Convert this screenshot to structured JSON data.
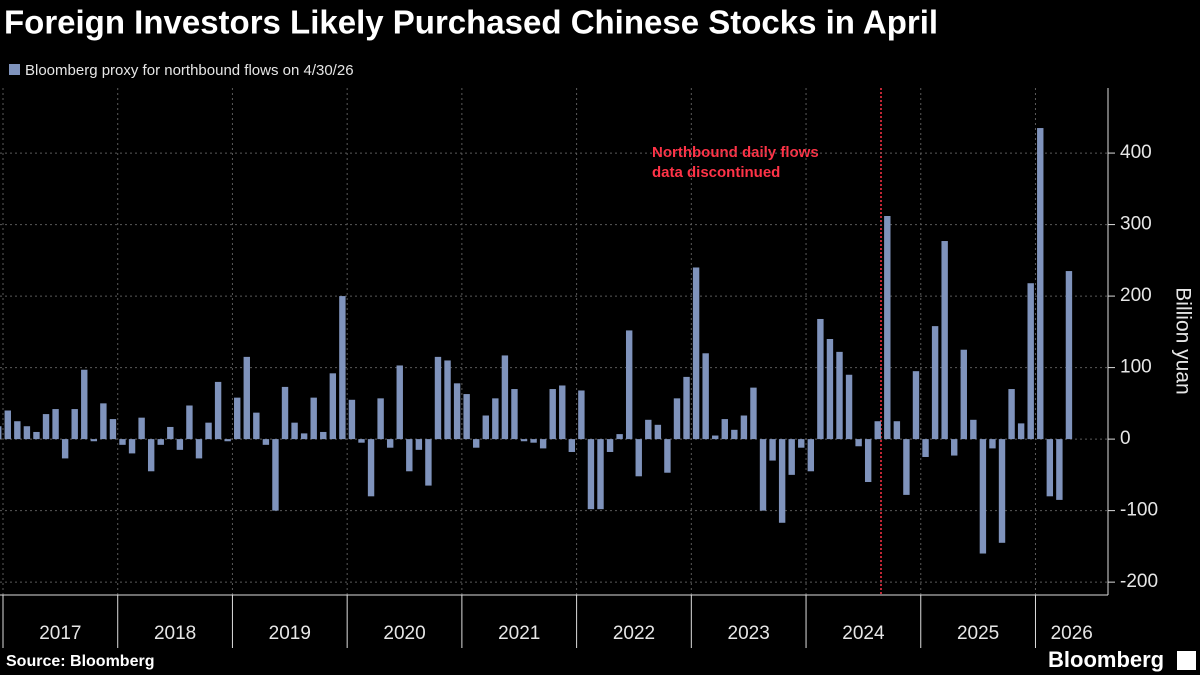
{
  "chart_data": {
    "type": "bar",
    "title": "Foreign Investors Likely Purchased Chinese Stocks in April",
    "y_axis_label": "Billion yuan",
    "annotation": [
      "Northbound daily flows",
      "data discontinued"
    ],
    "source": "Source: Bloomberg",
    "brand": "Bloomberg",
    "categories": [
      null,
      "2017",
      null,
      null,
      null,
      null,
      null,
      null,
      null,
      null,
      null,
      null,
      null,
      "2018",
      null,
      null,
      null,
      null,
      null,
      null,
      null,
      null,
      null,
      null,
      null,
      "2019",
      null,
      null,
      null,
      null,
      null,
      null,
      null,
      null,
      null,
      null,
      null,
      "2020",
      null,
      null,
      null,
      null,
      null,
      null,
      null,
      null,
      null,
      null,
      null,
      "2021",
      null,
      null,
      null,
      null,
      null,
      null,
      null,
      null,
      null,
      null,
      null,
      "2022",
      null,
      null,
      null,
      null,
      null,
      null,
      null,
      null,
      null,
      null,
      null,
      "2023",
      null,
      null,
      null,
      null,
      null,
      null,
      null,
      null,
      null,
      null,
      null,
      "2024",
      null,
      null,
      null,
      null,
      null,
      null,
      null,
      null,
      null,
      null,
      null,
      "2025",
      null,
      null,
      null,
      null,
      null,
      null,
      null,
      null,
      null,
      null,
      null,
      "2026",
      null,
      null,
      null
    ],
    "series": [
      {
        "name": "Bloomberg proxy for northbound flows on 4/30/26",
        "color": "#7f93bc",
        "values": [
          18,
          40,
          25,
          18,
          10,
          35,
          42,
          -27,
          42,
          97,
          -3,
          50,
          28,
          -8,
          -20,
          30,
          -45,
          -8,
          17,
          -15,
          47,
          -27,
          23,
          80,
          -3,
          58,
          115,
          37,
          -8,
          -100,
          73,
          23,
          8,
          58,
          10,
          92,
          200,
          55,
          -5,
          -80,
          57,
          -12,
          103,
          -45,
          -15,
          -65,
          115,
          110,
          78,
          63,
          -12,
          33,
          57,
          117,
          70,
          -3,
          -5,
          -13,
          70,
          75,
          -18,
          68,
          -98,
          -98,
          -18,
          7,
          152,
          -52,
          27,
          20,
          -47,
          57,
          87,
          240,
          120,
          5,
          28,
          13,
          33,
          72,
          -100,
          -30,
          -117,
          -50,
          -12,
          -45,
          168,
          140,
          122,
          90,
          -10,
          -60,
          25,
          312,
          25,
          -78,
          95,
          -25,
          158,
          277,
          -23,
          125,
          27,
          -160,
          -13,
          -145,
          70,
          22,
          218,
          435,
          -80,
          -85,
          235
        ]
      }
    ],
    "ylim": [
      -218,
      491
    ],
    "yticks": [
      -200,
      -100,
      0,
      100,
      200,
      300,
      400
    ],
    "y_axis_side": "right",
    "grid": true
  }
}
